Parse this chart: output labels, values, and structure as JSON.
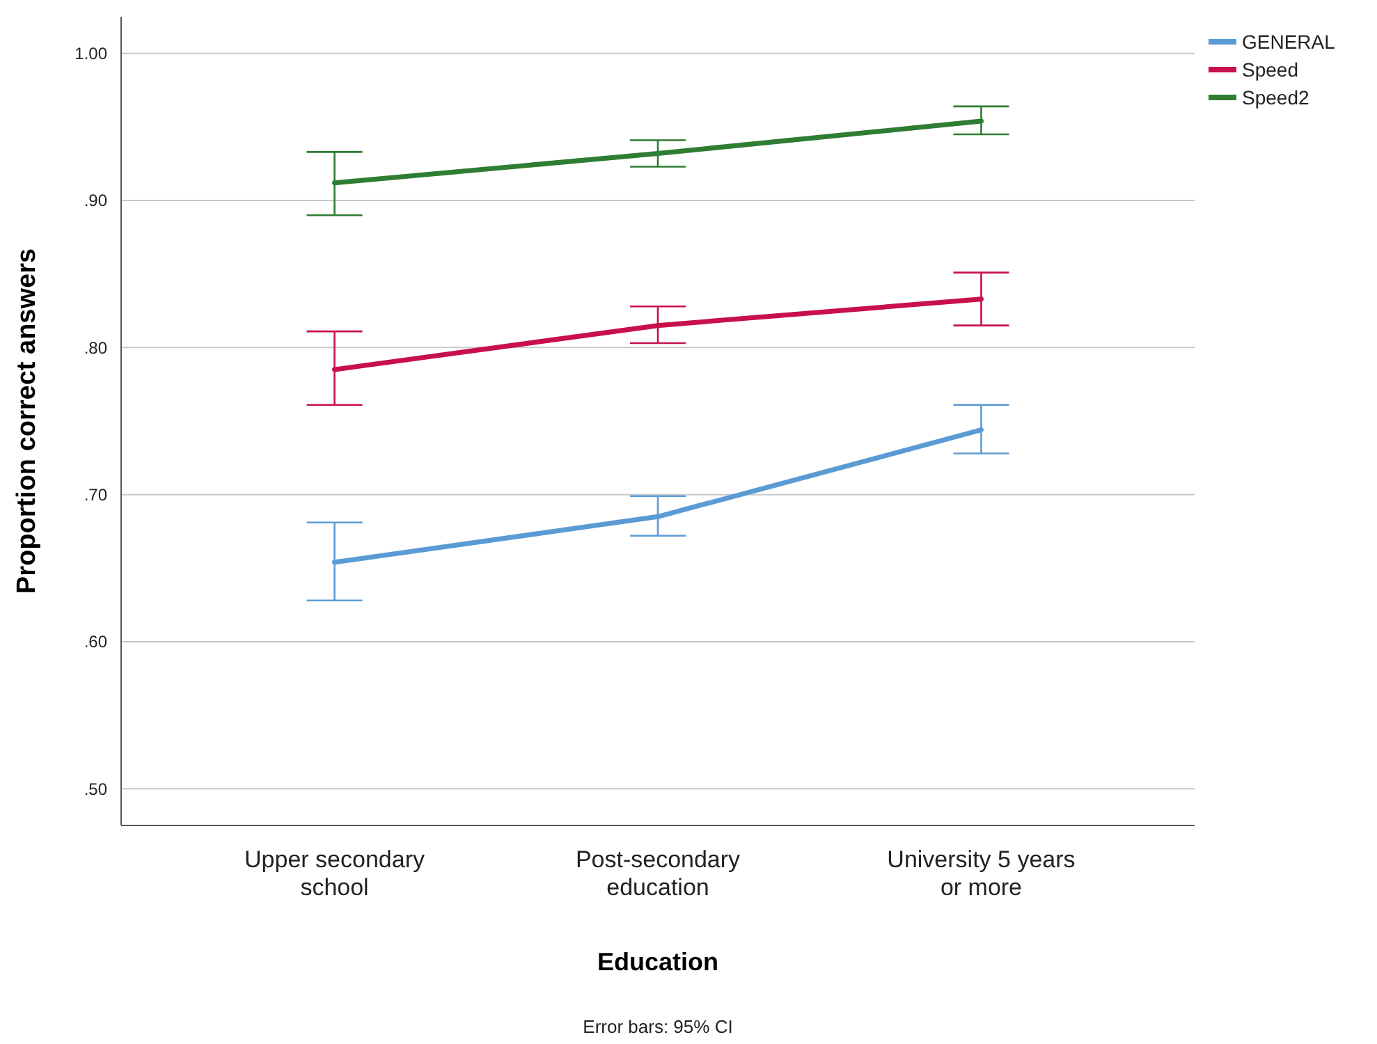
{
  "chart_data": {
    "type": "line",
    "xlabel": "Education",
    "ylabel": "Proportion correct answers",
    "categories": [
      "Upper secondary school",
      "Post-secondary education",
      "University 5 years or more"
    ],
    "series": [
      {
        "name": "GENERAL",
        "color": "#5b9bd5",
        "values": [
          0.654,
          0.685,
          0.744
        ],
        "errors": [
          [
            0.628,
            0.681
          ],
          [
            0.672,
            0.699
          ],
          [
            0.728,
            0.761
          ]
        ]
      },
      {
        "name": "Speed",
        "color": "#c8104a",
        "values": [
          0.785,
          0.815,
          0.833
        ],
        "errors": [
          [
            0.761,
            0.811
          ],
          [
            0.803,
            0.828
          ],
          [
            0.815,
            0.851
          ]
        ]
      },
      {
        "name": "Speed2",
        "color": "#2e7d32",
        "values": [
          0.912,
          0.932,
          0.954
        ],
        "errors": [
          [
            0.89,
            0.933
          ],
          [
            0.923,
            0.941
          ],
          [
            0.945,
            0.964
          ]
        ]
      }
    ],
    "ylim": [
      0.475,
      1.025
    ],
    "yticks": [
      {
        "value": 0.5,
        "label": ".50"
      },
      {
        "value": 0.6,
        "label": ".60"
      },
      {
        "value": 0.7,
        "label": ".70"
      },
      {
        "value": 0.8,
        "label": ".80"
      },
      {
        "value": 0.9,
        "label": ".90"
      },
      {
        "value": 1.0,
        "label": "1.00"
      }
    ],
    "grid": "y",
    "legend": "top right",
    "marker": "none",
    "line_style": "solid",
    "annotations": [
      "Error bars: 95% CI"
    ]
  }
}
